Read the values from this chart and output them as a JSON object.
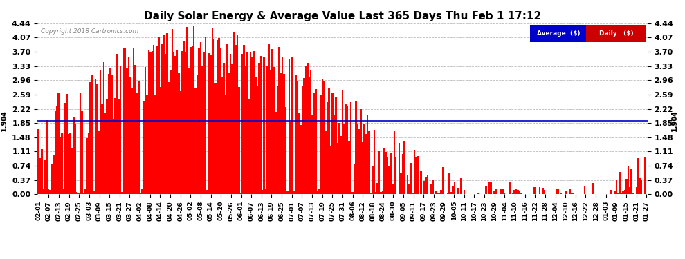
{
  "title": "Daily Solar Energy & Average Value Last 365 Days Thu Feb 1 17:12",
  "copyright": "Copyright 2018 Cartronics.com",
  "average_value": 1.904,
  "average_label": "1.904",
  "bar_color": "#ff0000",
  "average_line_color": "#0000cc",
  "background_color": "#ffffff",
  "grid_color": "#bbbbbb",
  "ylim": [
    0.0,
    4.44
  ],
  "yticks": [
    0.0,
    0.37,
    0.74,
    1.11,
    1.48,
    1.85,
    2.22,
    2.59,
    2.96,
    3.33,
    3.7,
    4.07,
    4.44
  ],
  "legend_avg_color": "#0000cc",
  "legend_daily_color": "#cc0000",
  "legend_avg_text": "Average  ($)",
  "legend_daily_text": "Daily   ($)",
  "xtick_labels": [
    "02-01",
    "02-07",
    "02-13",
    "02-19",
    "02-25",
    "03-03",
    "03-09",
    "03-15",
    "03-21",
    "03-27",
    "04-02",
    "04-08",
    "04-14",
    "04-20",
    "04-26",
    "05-02",
    "05-08",
    "05-14",
    "05-20",
    "05-26",
    "06-01",
    "06-07",
    "06-13",
    "06-19",
    "06-25",
    "07-01",
    "07-07",
    "07-13",
    "07-19",
    "07-25",
    "07-31",
    "08-06",
    "08-12",
    "08-18",
    "08-24",
    "08-30",
    "09-05",
    "09-11",
    "09-17",
    "09-23",
    "09-29",
    "10-05",
    "10-11",
    "10-17",
    "10-23",
    "10-29",
    "11-04",
    "11-10",
    "11-16",
    "11-22",
    "11-28",
    "12-04",
    "12-10",
    "12-16",
    "12-22",
    "12-28",
    "01-03",
    "01-09",
    "01-15",
    "01-21",
    "01-27"
  ],
  "num_bars": 365
}
